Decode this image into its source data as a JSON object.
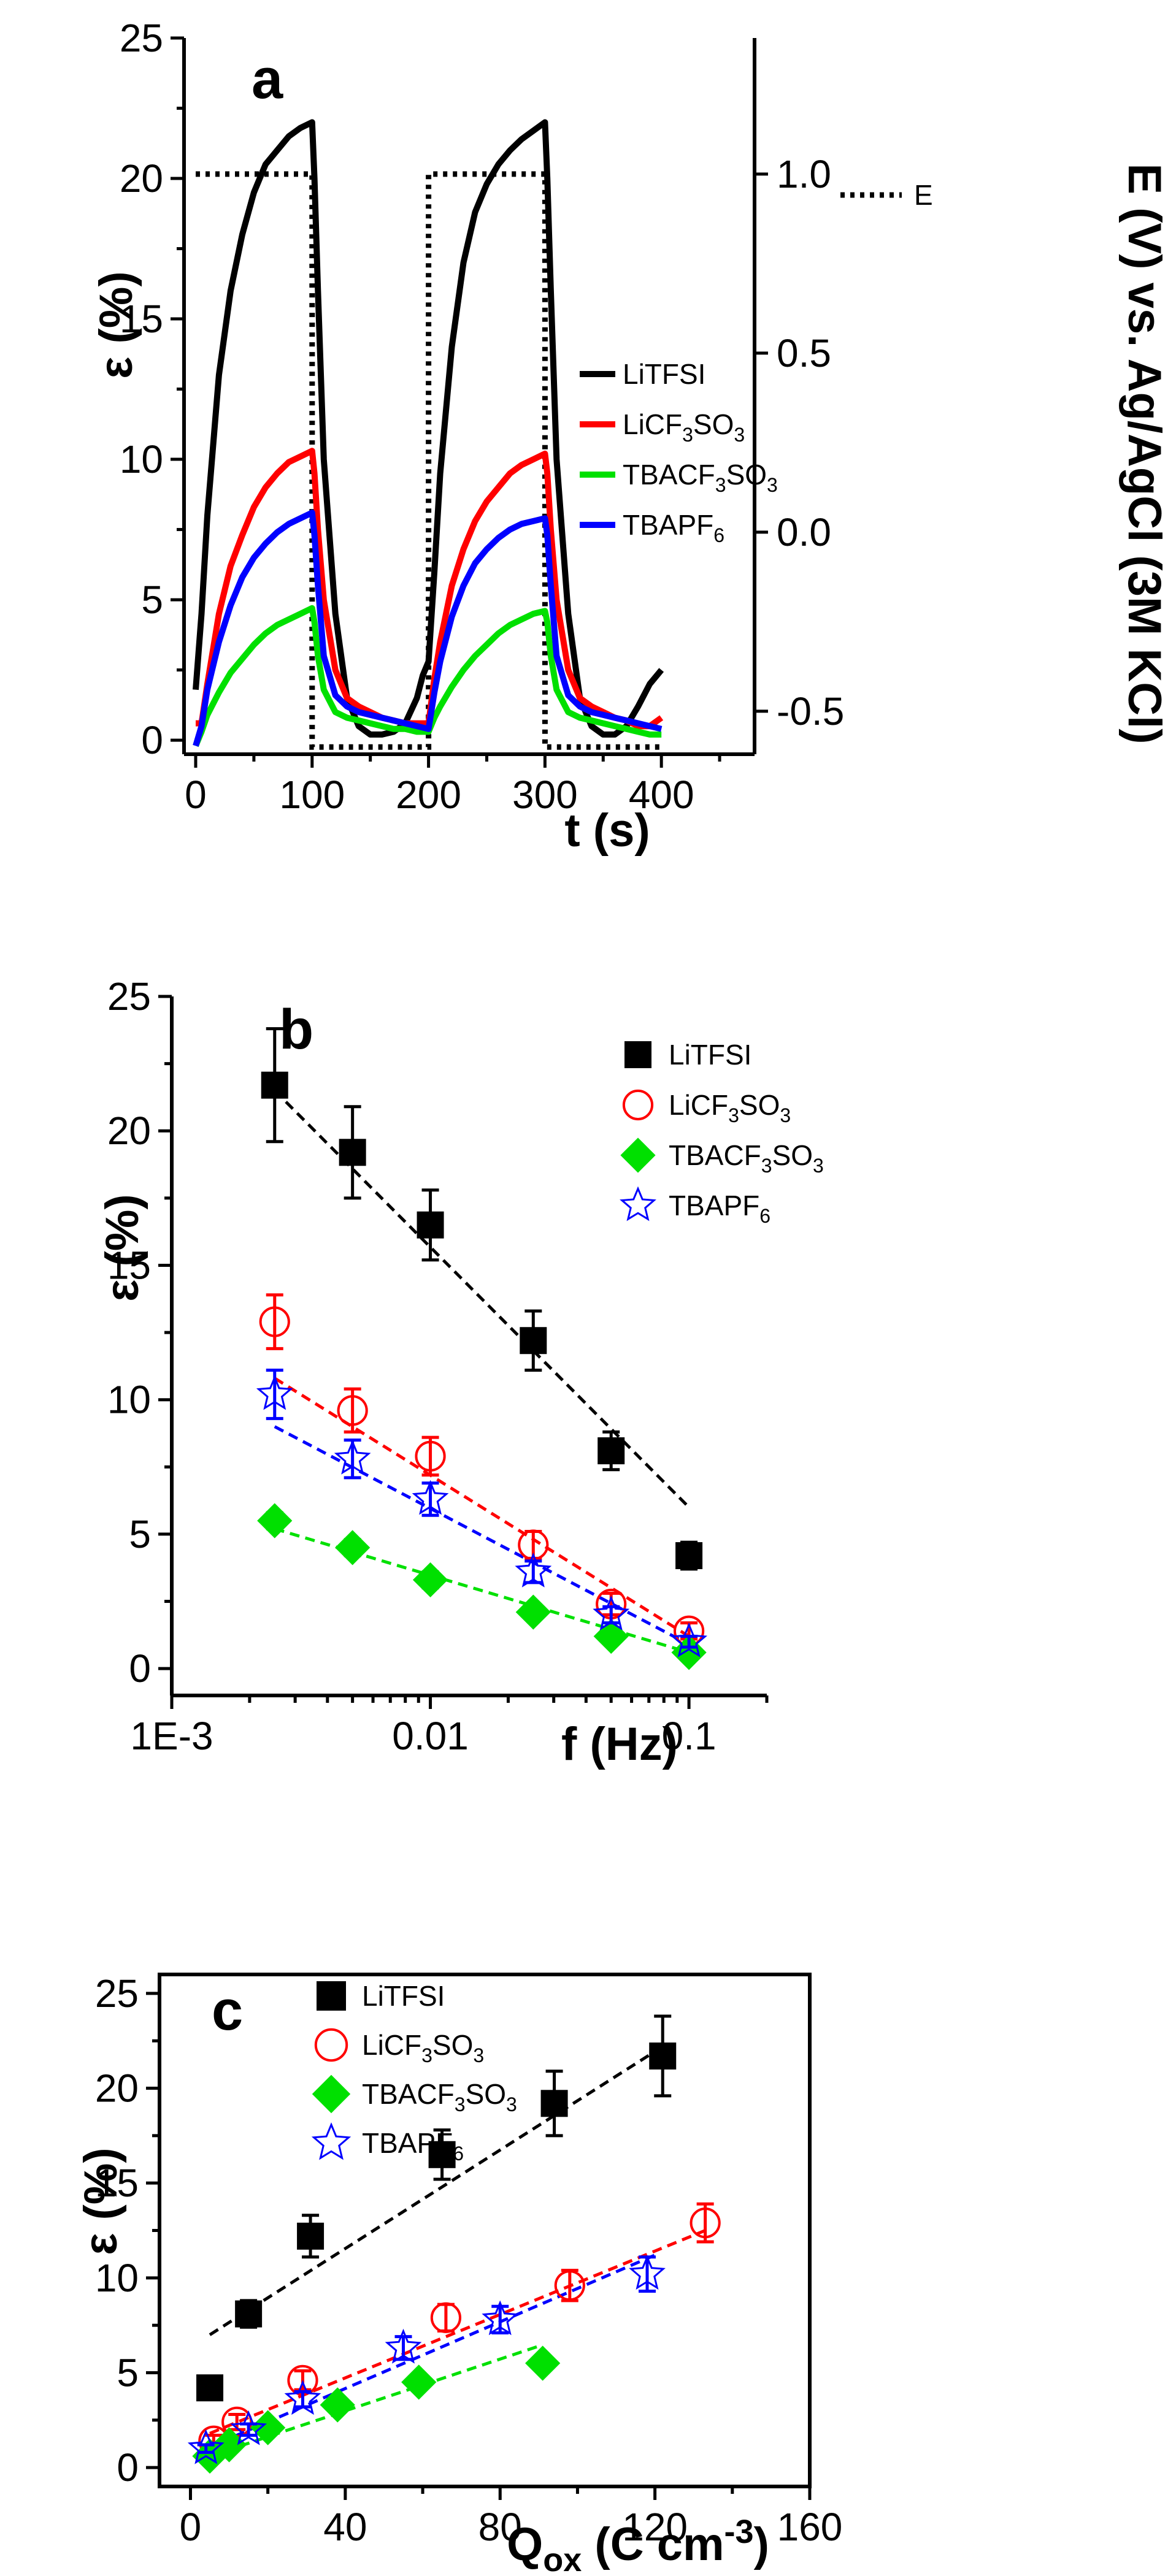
{
  "colors": {
    "LiTFSI": "#000000",
    "LiCF3SO3": "#ff0000",
    "TBACF3SO3": "#00e000",
    "TBAPF6": "#0000ff"
  },
  "chart_data": [
    {
      "id": "a",
      "type": "line",
      "panel_label": "a",
      "xlabel": "t (s)",
      "ylabel": "ε (%)",
      "y2label": "E (V) vs. Ag/AgCl (3M KCl)",
      "xlim": [
        -10,
        480
      ],
      "ylim": [
        -0.5,
        25
      ],
      "y2lim": [
        -0.62,
        1.38
      ],
      "xticks": [
        "0",
        "100",
        "200",
        "300",
        "400"
      ],
      "yticks": [
        "0",
        "5",
        "10",
        "15",
        "20",
        "25"
      ],
      "y2ticks": [
        "-0.5",
        "0.0",
        "0.5",
        "1.0"
      ],
      "legend": [
        {
          "key": "LiTFSI",
          "label": "LiTFSI"
        },
        {
          "key": "LiCF3SO3",
          "label": "LiCF",
          "sub1": "3",
          "mid": "SO",
          "sub2": "3"
        },
        {
          "key": "TBACF3SO3",
          "label": "TBACF",
          "sub1": "3",
          "mid": "SO",
          "sub2": "3"
        },
        {
          "key": "TBAPF6",
          "label": "TBAPF",
          "sub1": "6"
        }
      ],
      "e_label": "E",
      "e_square_wave": {
        "x": [
          0,
          100,
          100,
          200,
          200,
          300,
          300,
          400
        ],
        "y": [
          1.0,
          1.0,
          -0.6,
          -0.6,
          1.0,
          1.0,
          -0.6,
          -0.6
        ]
      },
      "series": [
        {
          "name": "LiTFSI",
          "key": "LiTFSI",
          "x": [
            0,
            5,
            10,
            20,
            30,
            40,
            50,
            60,
            70,
            80,
            90,
            100,
            102,
            105,
            110,
            120,
            130,
            140,
            150,
            160,
            170,
            180,
            190,
            195,
            200,
            205,
            210,
            220,
            230,
            240,
            250,
            260,
            270,
            280,
            290,
            300,
            302,
            305,
            310,
            320,
            330,
            340,
            350,
            360,
            370,
            380,
            390,
            400
          ],
          "y": [
            1.8,
            4.5,
            8.0,
            13.0,
            16.0,
            18.0,
            19.5,
            20.5,
            21.0,
            21.5,
            21.8,
            22.0,
            20.0,
            16.0,
            10.0,
            4.5,
            1.5,
            0.5,
            0.2,
            0.2,
            0.3,
            0.6,
            1.5,
            2.3,
            2.8,
            6.0,
            9.5,
            14.0,
            17.0,
            18.8,
            19.8,
            20.5,
            21.0,
            21.4,
            21.7,
            22.0,
            20.0,
            16.0,
            10.0,
            4.5,
            1.5,
            0.5,
            0.2,
            0.2,
            0.5,
            1.2,
            2.0,
            2.5
          ]
        },
        {
          "name": "LiCF3SO3",
          "key": "LiCF3SO3",
          "x": [
            0,
            5,
            10,
            20,
            30,
            40,
            50,
            60,
            70,
            80,
            90,
            100,
            102,
            105,
            110,
            120,
            130,
            140,
            150,
            160,
            170,
            180,
            190,
            200,
            205,
            210,
            220,
            230,
            240,
            250,
            260,
            270,
            280,
            290,
            300,
            302,
            305,
            310,
            320,
            330,
            340,
            350,
            360,
            370,
            380,
            390,
            400
          ],
          "y": [
            0.6,
            0.6,
            2.0,
            4.5,
            6.2,
            7.3,
            8.3,
            9.0,
            9.5,
            9.9,
            10.1,
            10.3,
            9.5,
            7.5,
            5.0,
            2.5,
            1.5,
            1.2,
            1.0,
            0.8,
            0.7,
            0.6,
            0.6,
            0.6,
            2.2,
            3.5,
            5.5,
            6.8,
            7.8,
            8.5,
            9.0,
            9.5,
            9.8,
            10.0,
            10.2,
            9.5,
            7.5,
            5.0,
            2.5,
            1.5,
            1.2,
            1.0,
            0.8,
            0.7,
            0.5,
            0.5,
            0.8
          ]
        },
        {
          "name": "TBACF3SO3",
          "key": "TBACF3SO3",
          "x": [
            0,
            5,
            10,
            20,
            30,
            40,
            50,
            60,
            70,
            80,
            90,
            100,
            102,
            105,
            110,
            120,
            130,
            140,
            150,
            160,
            170,
            180,
            190,
            200,
            205,
            210,
            220,
            230,
            240,
            250,
            260,
            270,
            280,
            290,
            300,
            302,
            305,
            310,
            320,
            330,
            340,
            350,
            360,
            370,
            380,
            390,
            400
          ],
          "y": [
            -0.2,
            0.3,
            0.9,
            1.7,
            2.4,
            2.9,
            3.4,
            3.8,
            4.1,
            4.3,
            4.5,
            4.7,
            4.2,
            3.0,
            1.8,
            1.0,
            0.8,
            0.7,
            0.6,
            0.5,
            0.4,
            0.4,
            0.3,
            0.3,
            0.8,
            1.2,
            1.9,
            2.5,
            3.0,
            3.4,
            3.8,
            4.1,
            4.3,
            4.5,
            4.6,
            4.2,
            3.0,
            1.8,
            1.0,
            0.8,
            0.7,
            0.6,
            0.5,
            0.4,
            0.3,
            0.2,
            0.2
          ]
        },
        {
          "name": "TBAPF6",
          "key": "TBAPF6",
          "x": [
            0,
            5,
            10,
            20,
            30,
            40,
            50,
            60,
            70,
            80,
            90,
            100,
            102,
            105,
            110,
            120,
            130,
            140,
            150,
            160,
            170,
            180,
            190,
            200,
            205,
            210,
            220,
            230,
            240,
            250,
            260,
            270,
            280,
            290,
            300,
            302,
            305,
            310,
            320,
            330,
            340,
            350,
            360,
            370,
            380,
            390,
            400
          ],
          "y": [
            -0.2,
            0.5,
            1.8,
            3.5,
            4.8,
            5.8,
            6.5,
            7.0,
            7.4,
            7.7,
            7.9,
            8.1,
            7.3,
            5.5,
            3.0,
            1.6,
            1.2,
            1.0,
            0.9,
            0.8,
            0.7,
            0.6,
            0.5,
            0.4,
            1.7,
            2.8,
            4.4,
            5.5,
            6.3,
            6.8,
            7.2,
            7.5,
            7.7,
            7.8,
            7.9,
            7.3,
            5.5,
            3.0,
            1.6,
            1.2,
            1.0,
            0.9,
            0.8,
            0.7,
            0.6,
            0.5,
            0.4
          ]
        }
      ]
    },
    {
      "id": "b",
      "type": "scatter",
      "panel_label": "b",
      "xlabel": "f (Hz)",
      "ylabel": "ε (%)",
      "xscale": "log",
      "xlim": [
        0.001,
        0.2
      ],
      "ylim": [
        -1,
        25
      ],
      "xtick_values": [
        0.001,
        0.01,
        0.1
      ],
      "xticks": [
        "1E-3",
        "0.01",
        "0.1"
      ],
      "yticks": [
        "0",
        "5",
        "10",
        "15",
        "20",
        "25"
      ],
      "legend": [
        {
          "key": "LiTFSI",
          "label": "LiTFSI"
        },
        {
          "key": "LiCF3SO3",
          "label": "LiCF",
          "sub1": "3",
          "mid": "SO",
          "sub2": "3"
        },
        {
          "key": "TBACF3SO3",
          "label": "TBACF",
          "sub1": "3",
          "mid": "SO",
          "sub2": "3"
        },
        {
          "key": "TBAPF6",
          "label": "TBAPF",
          "sub1": "6"
        }
      ],
      "series": [
        {
          "name": "LiTFSI",
          "key": "LiTFSI",
          "marker": "square",
          "x": [
            0.0025,
            0.005,
            0.01,
            0.025,
            0.05,
            0.1
          ],
          "y": [
            21.7,
            19.2,
            16.5,
            12.2,
            8.1,
            4.2
          ],
          "err": [
            2.1,
            1.7,
            1.3,
            1.1,
            0.7,
            0.5
          ],
          "fit": {
            "x": [
              0.0025,
              0.1
            ],
            "y": [
              21.5,
              6.0
            ]
          }
        },
        {
          "name": "LiCF3SO3",
          "key": "LiCF3SO3",
          "marker": "circle",
          "x": [
            0.0025,
            0.005,
            0.01,
            0.025,
            0.05,
            0.1
          ],
          "y": [
            12.9,
            9.6,
            7.9,
            4.6,
            2.4,
            1.4
          ],
          "err": [
            1.0,
            0.8,
            0.7,
            0.5,
            0.4,
            0.3
          ],
          "fit": {
            "x": [
              0.0025,
              0.1
            ],
            "y": [
              10.8,
              1.2
            ]
          }
        },
        {
          "name": "TBACF3SO3",
          "key": "TBACF3SO3",
          "marker": "diamond",
          "x": [
            0.0025,
            0.005,
            0.01,
            0.025,
            0.05,
            0.1
          ],
          "y": [
            5.5,
            4.5,
            3.3,
            2.1,
            1.2,
            0.6
          ],
          "err": [
            0.3,
            0.3,
            0.3,
            0.2,
            0.2,
            0.1
          ],
          "fit": {
            "x": [
              0.0025,
              0.1
            ],
            "y": [
              5.2,
              0.6
            ]
          }
        },
        {
          "name": "TBAPF6",
          "key": "TBAPF6",
          "marker": "star",
          "x": [
            0.0025,
            0.005,
            0.01,
            0.025,
            0.05,
            0.1
          ],
          "y": [
            10.2,
            7.8,
            6.3,
            3.6,
            2.0,
            1.0
          ],
          "err": [
            0.9,
            0.7,
            0.6,
            0.4,
            0.3,
            0.2
          ],
          "fit": {
            "x": [
              0.0025,
              0.1
            ],
            "y": [
              9.0,
              0.9
            ]
          }
        }
      ]
    },
    {
      "id": "c",
      "type": "scatter",
      "panel_label": "c",
      "xlabel": "Q",
      "xlabel_sub": "ox",
      "xlabel_rest": " (C cm",
      "xlabel_sup": "-3",
      "xlabel_end": ")",
      "ylabel": "ε (%)",
      "xlim": [
        -8,
        160
      ],
      "ylim": [
        -1,
        26
      ],
      "xtick_values": [
        0,
        40,
        80,
        120,
        160
      ],
      "xticks": [
        "0",
        "40",
        "80",
        "120",
        "160"
      ],
      "yticks": [
        "0",
        "5",
        "10",
        "15",
        "20",
        "25"
      ],
      "legend": [
        {
          "key": "LiTFSI",
          "label": "LiTFSI"
        },
        {
          "key": "LiCF3SO3",
          "label": "LiCF",
          "sub1": "3",
          "mid": "SO",
          "sub2": "3"
        },
        {
          "key": "TBACF3SO3",
          "label": "TBACF",
          "sub1": "3",
          "mid": "SO",
          "sub2": "3"
        },
        {
          "key": "TBAPF6",
          "label": "TBAPF",
          "sub1": "6"
        }
      ],
      "series": [
        {
          "name": "LiTFSI",
          "key": "LiTFSI",
          "marker": "square",
          "x": [
            5,
            15,
            31,
            65,
            94,
            122
          ],
          "y": [
            4.2,
            8.1,
            12.2,
            16.5,
            19.2,
            21.7
          ],
          "err": [
            0.5,
            0.7,
            1.1,
            1.3,
            1.7,
            2.1
          ],
          "fit": {
            "x": [
              5,
              122
            ],
            "y": [
              7.0,
              22.2
            ]
          }
        },
        {
          "name": "LiCF3SO3",
          "key": "LiCF3SO3",
          "marker": "circle",
          "x": [
            6,
            12,
            29,
            66,
            98,
            133
          ],
          "y": [
            1.4,
            2.4,
            4.6,
            7.9,
            9.6,
            12.9
          ],
          "err": [
            0.3,
            0.4,
            0.5,
            0.7,
            0.8,
            1.0
          ],
          "fit": {
            "x": [
              5,
              133
            ],
            "y": [
              1.8,
              12.5
            ]
          }
        },
        {
          "name": "TBACF3SO3",
          "key": "TBACF3SO3",
          "marker": "diamond",
          "x": [
            5,
            10,
            20,
            38,
            59,
            91
          ],
          "y": [
            0.6,
            1.2,
            2.1,
            3.3,
            4.5,
            5.5
          ],
          "err": [
            0.1,
            0.2,
            0.2,
            0.3,
            0.3,
            0.3
          ],
          "fit": {
            "x": [
              5,
              90
            ],
            "y": [
              0.6,
              6.4
            ]
          }
        },
        {
          "name": "TBAPF6",
          "key": "TBAPF6",
          "marker": "star",
          "x": [
            4,
            15,
            29,
            55,
            80,
            118
          ],
          "y": [
            1.0,
            2.0,
            3.6,
            6.3,
            7.8,
            10.2
          ],
          "err": [
            0.2,
            0.3,
            0.4,
            0.6,
            0.7,
            0.9
          ],
          "fit": {
            "x": [
              4,
              120
            ],
            "y": [
              1.0,
              11.2
            ]
          }
        }
      ]
    }
  ]
}
